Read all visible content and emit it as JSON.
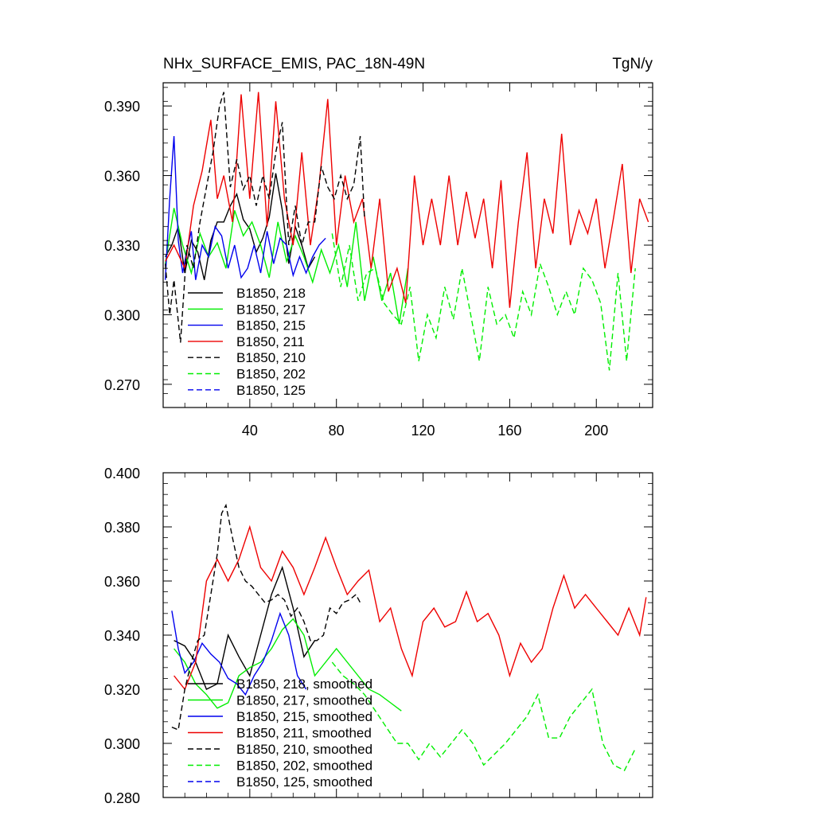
{
  "chart_data": [
    {
      "type": "line",
      "title": "NHx_SURFACE_EMIS, PAC_18N-49N",
      "units": "TgN/y",
      "xlim": [
        0,
        226
      ],
      "ylim": [
        0.26,
        0.4
      ],
      "xticks": [
        40,
        80,
        120,
        160,
        200
      ],
      "xtick_labels": [
        "40",
        "80",
        "120",
        "160",
        "200"
      ],
      "yticks": [
        0.27,
        0.3,
        0.33,
        0.36,
        0.39
      ],
      "ytick_labels": [
        "0.270",
        "0.300",
        "0.330",
        "0.360",
        "0.390"
      ],
      "legend_position": "bottom-left",
      "series": [
        {
          "name": "B1850, 218",
          "color": "#000000",
          "dash": "solid",
          "x": [
            1,
            4,
            7,
            10,
            13,
            16,
            19,
            22,
            25,
            28,
            31,
            34,
            37,
            40,
            43,
            46,
            49,
            52,
            55,
            58,
            61,
            64,
            67,
            70
          ],
          "y": [
            0.325,
            0.33,
            0.338,
            0.318,
            0.332,
            0.327,
            0.315,
            0.332,
            0.34,
            0.34,
            0.347,
            0.352,
            0.341,
            0.337,
            0.327,
            0.333,
            0.342,
            0.361,
            0.345,
            0.322,
            0.338,
            0.33,
            0.32,
            0.325
          ]
        },
        {
          "name": "B1850, 217",
          "color": "#00ee00",
          "dash": "solid",
          "x": [
            1,
            5,
            9,
            13,
            17,
            21,
            25,
            29,
            33,
            37,
            41,
            45,
            49,
            53,
            57,
            61,
            65,
            69,
            73,
            77,
            81,
            85,
            89,
            93,
            97,
            101,
            105,
            109,
            113
          ],
          "y": [
            0.322,
            0.346,
            0.33,
            0.318,
            0.335,
            0.325,
            0.331,
            0.32,
            0.345,
            0.334,
            0.34,
            0.33,
            0.316,
            0.34,
            0.323,
            0.334,
            0.325,
            0.314,
            0.328,
            0.318,
            0.33,
            0.312,
            0.34,
            0.306,
            0.325,
            0.306,
            0.318,
            0.296,
            0.32
          ]
        },
        {
          "name": "B1850, 215",
          "color": "#0000ee",
          "dash": "solid",
          "x": [
            1,
            3,
            5,
            7,
            9,
            11,
            13,
            15,
            18,
            21,
            24,
            27,
            30,
            33,
            36,
            39,
            42,
            45,
            48,
            51,
            54,
            57,
            60,
            63,
            66,
            69,
            72,
            75
          ],
          "y": [
            0.315,
            0.35,
            0.377,
            0.332,
            0.318,
            0.328,
            0.336,
            0.315,
            0.33,
            0.325,
            0.338,
            0.334,
            0.32,
            0.33,
            0.316,
            0.32,
            0.33,
            0.318,
            0.336,
            0.322,
            0.333,
            0.33,
            0.317,
            0.325,
            0.318,
            0.325,
            0.33,
            0.333
          ]
        },
        {
          "name": "B1850, 211",
          "color": "#ee0000",
          "dash": "solid",
          "x": [
            1,
            5,
            10,
            14,
            18,
            22,
            25,
            28,
            32,
            36,
            40,
            44,
            48,
            52,
            56,
            60,
            64,
            68,
            72,
            76,
            80,
            84,
            88,
            92,
            96,
            100,
            104,
            108,
            112,
            116,
            120,
            124,
            128,
            132,
            136,
            140,
            144,
            148,
            152,
            156,
            160,
            164,
            168,
            172,
            176,
            180,
            184,
            188,
            192,
            196,
            200,
            204,
            208,
            212,
            216,
            220,
            224
          ],
          "y": [
            0.323,
            0.33,
            0.32,
            0.347,
            0.362,
            0.384,
            0.35,
            0.36,
            0.34,
            0.395,
            0.35,
            0.396,
            0.338,
            0.392,
            0.35,
            0.33,
            0.37,
            0.33,
            0.356,
            0.393,
            0.33,
            0.36,
            0.34,
            0.35,
            0.32,
            0.35,
            0.31,
            0.32,
            0.305,
            0.36,
            0.33,
            0.35,
            0.33,
            0.36,
            0.33,
            0.353,
            0.333,
            0.35,
            0.32,
            0.358,
            0.303,
            0.34,
            0.37,
            0.32,
            0.35,
            0.335,
            0.378,
            0.33,
            0.345,
            0.335,
            0.35,
            0.32,
            0.342,
            0.365,
            0.318,
            0.35,
            0.34
          ]
        },
        {
          "name": "B1850, 210",
          "color": "#000000",
          "dash": "dashed",
          "x": [
            1,
            3,
            5,
            8,
            11,
            14,
            17,
            20,
            23,
            26,
            28,
            31,
            34,
            37,
            40,
            43,
            46,
            49,
            52,
            55,
            58,
            61,
            64,
            67,
            70,
            73,
            76,
            79,
            82,
            85,
            88,
            91,
            93
          ],
          "y": [
            0.322,
            0.3,
            0.315,
            0.288,
            0.33,
            0.32,
            0.34,
            0.355,
            0.37,
            0.39,
            0.396,
            0.355,
            0.367,
            0.354,
            0.36,
            0.347,
            0.36,
            0.35,
            0.37,
            0.383,
            0.33,
            0.347,
            0.33,
            0.34,
            0.34,
            0.364,
            0.355,
            0.35,
            0.36,
            0.35,
            0.356,
            0.377,
            0.341
          ]
        },
        {
          "name": "B1850, 202",
          "color": "#00ee00",
          "dash": "dashed",
          "x": [
            78,
            82,
            86,
            90,
            94,
            98,
            102,
            106,
            110,
            114,
            118,
            122,
            126,
            130,
            134,
            138,
            142,
            146,
            150,
            154,
            158,
            162,
            166,
            170,
            174,
            178,
            182,
            186,
            190,
            194,
            198,
            202,
            206,
            210,
            214,
            218
          ],
          "y": [
            0.335,
            0.312,
            0.33,
            0.306,
            0.318,
            0.32,
            0.305,
            0.3,
            0.296,
            0.312,
            0.28,
            0.3,
            0.29,
            0.312,
            0.298,
            0.32,
            0.3,
            0.28,
            0.312,
            0.296,
            0.3,
            0.29,
            0.31,
            0.3,
            0.322,
            0.312,
            0.3,
            0.31,
            0.3,
            0.32,
            0.315,
            0.305,
            0.276,
            0.318,
            0.28,
            0.32
          ]
        },
        {
          "name": "B1850, 125",
          "color": "#0000ee",
          "dash": "dashed",
          "x": [],
          "y": []
        }
      ]
    },
    {
      "type": "line",
      "xlim": [
        0,
        226
      ],
      "ylim": [
        0.28,
        0.4
      ],
      "xticks": [
        40,
        80,
        120,
        160,
        200
      ],
      "xtick_labels": [],
      "yticks": [
        0.28,
        0.3,
        0.32,
        0.34,
        0.36,
        0.38,
        0.4
      ],
      "ytick_labels": [
        "0.280",
        "0.300",
        "0.320",
        "0.340",
        "0.360",
        "0.380",
        "0.400"
      ],
      "legend_position": "bottom-left",
      "series": [
        {
          "name": "B1850, 218, smoothed",
          "color": "#000000",
          "dash": "solid",
          "x": [
            5,
            10,
            15,
            20,
            25,
            30,
            35,
            40,
            45,
            50,
            55,
            60,
            65,
            70
          ],
          "y": [
            0.338,
            0.336,
            0.33,
            0.32,
            0.322,
            0.34,
            0.332,
            0.325,
            0.34,
            0.355,
            0.365,
            0.35,
            0.332,
            0.338
          ]
        },
        {
          "name": "B1850, 217, smoothed",
          "color": "#00ee00",
          "dash": "solid",
          "x": [
            5,
            10,
            15,
            20,
            25,
            30,
            35,
            40,
            45,
            50,
            55,
            60,
            65,
            70,
            75,
            80,
            85,
            90,
            95,
            100,
            105,
            110
          ],
          "y": [
            0.335,
            0.33,
            0.322,
            0.318,
            0.313,
            0.315,
            0.325,
            0.328,
            0.33,
            0.335,
            0.342,
            0.346,
            0.34,
            0.325,
            0.33,
            0.335,
            0.33,
            0.325,
            0.32,
            0.318,
            0.315,
            0.312
          ]
        },
        {
          "name": "B1850, 215, smoothed",
          "color": "#0000ee",
          "dash": "solid",
          "x": [
            4,
            7,
            10,
            14,
            18,
            22,
            26,
            30,
            34,
            38,
            42,
            46,
            50,
            54,
            58,
            62,
            66
          ],
          "y": [
            0.349,
            0.335,
            0.326,
            0.33,
            0.337,
            0.333,
            0.33,
            0.324,
            0.322,
            0.318,
            0.325,
            0.33,
            0.338,
            0.348,
            0.34,
            0.325,
            0.32
          ]
        },
        {
          "name": "B1850, 211, smoothed",
          "color": "#ee0000",
          "dash": "solid",
          "x": [
            5,
            10,
            15,
            20,
            25,
            30,
            35,
            40,
            45,
            50,
            55,
            60,
            65,
            70,
            75,
            80,
            85,
            90,
            95,
            100,
            105,
            110,
            115,
            120,
            125,
            130,
            135,
            140,
            145,
            150,
            155,
            160,
            165,
            170,
            175,
            180,
            185,
            190,
            195,
            200,
            205,
            210,
            215,
            220,
            223
          ],
          "y": [
            0.325,
            0.32,
            0.33,
            0.36,
            0.368,
            0.36,
            0.368,
            0.38,
            0.365,
            0.36,
            0.371,
            0.365,
            0.355,
            0.365,
            0.376,
            0.365,
            0.355,
            0.36,
            0.364,
            0.345,
            0.35,
            0.335,
            0.325,
            0.345,
            0.35,
            0.343,
            0.345,
            0.356,
            0.345,
            0.348,
            0.34,
            0.325,
            0.337,
            0.33,
            0.335,
            0.35,
            0.362,
            0.35,
            0.355,
            0.35,
            0.345,
            0.34,
            0.35,
            0.34,
            0.354
          ]
        },
        {
          "name": "B1850, 210, smoothed",
          "color": "#000000",
          "dash": "dashed",
          "x": [
            4,
            7,
            10,
            13,
            16,
            19,
            22,
            25,
            27,
            29,
            32,
            35,
            38,
            41,
            44,
            47,
            50,
            53,
            56,
            59,
            62,
            65,
            68,
            71,
            74,
            77,
            80,
            83,
            86,
            89,
            91
          ],
          "y": [
            0.306,
            0.305,
            0.32,
            0.33,
            0.338,
            0.34,
            0.355,
            0.37,
            0.385,
            0.388,
            0.376,
            0.365,
            0.36,
            0.358,
            0.355,
            0.352,
            0.353,
            0.355,
            0.353,
            0.347,
            0.35,
            0.345,
            0.338,
            0.338,
            0.34,
            0.35,
            0.348,
            0.352,
            0.353,
            0.355,
            0.352
          ]
        },
        {
          "name": "B1850, 202, smoothed",
          "color": "#00ee00",
          "dash": "dashed",
          "x": [
            78,
            83,
            88,
            93,
            98,
            103,
            108,
            113,
            118,
            123,
            128,
            133,
            138,
            143,
            148,
            153,
            158,
            163,
            168,
            173,
            178,
            183,
            188,
            193,
            198,
            203,
            208,
            213,
            218
          ],
          "y": [
            0.33,
            0.325,
            0.322,
            0.318,
            0.312,
            0.306,
            0.3,
            0.3,
            0.294,
            0.3,
            0.295,
            0.3,
            0.305,
            0.3,
            0.292,
            0.296,
            0.3,
            0.305,
            0.31,
            0.318,
            0.302,
            0.302,
            0.31,
            0.315,
            0.32,
            0.3,
            0.292,
            0.29,
            0.298
          ]
        },
        {
          "name": "B1850, 125, smoothed",
          "color": "#0000ee",
          "dash": "dashed",
          "x": [],
          "y": []
        }
      ]
    }
  ]
}
